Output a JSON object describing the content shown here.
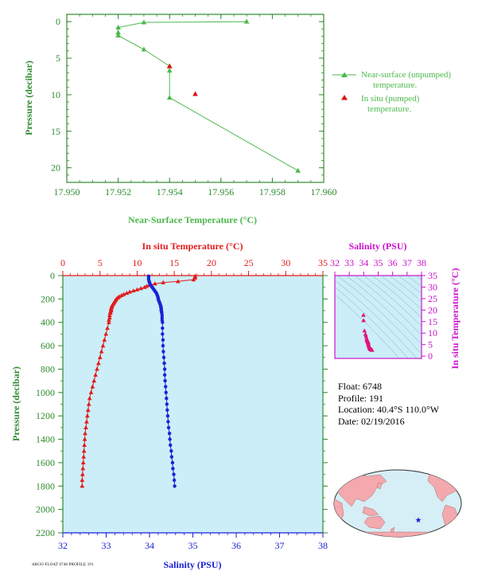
{
  "chart_data": [
    {
      "type": "line",
      "panel": "near-surface",
      "xlabel": "Near-Surface Temperature (°C)",
      "ylabel": "Pressure (decibar)",
      "xlim": [
        17.95,
        17.96
      ],
      "ylim": [
        22,
        -1
      ],
      "x_ticks": [
        "17.950",
        "17.952",
        "17.954",
        "17.956",
        "17.958",
        "17.960"
      ],
      "y_ticks": [
        "0",
        "5",
        "10",
        "15",
        "20"
      ],
      "series": [
        {
          "name": "Near-surface (unpumped) temperature.",
          "marker": "triangle",
          "color": "#4cb84c",
          "x": [
            17.957,
            17.953,
            17.952,
            17.952,
            17.952,
            17.953,
            17.954,
            17.954,
            17.954,
            17.959
          ],
          "y": [
            0.0,
            0.1,
            0.8,
            1.5,
            1.9,
            3.8,
            6.1,
            6.7,
            10.4,
            20.4
          ]
        },
        {
          "name": "In situ (pumped) temperature.",
          "marker": "triangle",
          "color": "#dd1111",
          "x": [
            17.954,
            17.955
          ],
          "y": [
            6.1,
            9.9
          ]
        }
      ],
      "legend": [
        {
          "line1": "Near-surface (unpumped)",
          "line2": "temperature."
        },
        {
          "line1": "In situ (pumped)",
          "line2": "temperature."
        }
      ]
    },
    {
      "type": "line",
      "panel": "profile",
      "ylabel": "Pressure (decibar)",
      "top_xlabel": "In situ Temperature (°C)",
      "bottom_xlabel": "Salinity (PSU)",
      "temperature_lim": [
        0,
        35
      ],
      "salinity_lim": [
        32,
        38
      ],
      "ylim": [
        2200,
        0
      ],
      "temperature_ticks": [
        "0",
        "5",
        "10",
        "15",
        "20",
        "25",
        "30",
        "35"
      ],
      "salinity_ticks": [
        "32",
        "33",
        "34",
        "35",
        "36",
        "37",
        "38"
      ],
      "pressure_ticks": [
        "0",
        "200",
        "400",
        "600",
        "800",
        "1000",
        "1200",
        "1400",
        "1600",
        "1800",
        "2000",
        "2200"
      ],
      "series": [
        {
          "name": "In situ Temperature",
          "color": "#e41a1a",
          "marker": "triangle",
          "pressure": [
            5,
            20,
            35,
            50,
            60,
            70,
            80,
            90,
            100,
            110,
            120,
            130,
            140,
            150,
            160,
            170,
            180,
            190,
            200,
            210,
            220,
            230,
            240,
            250,
            260,
            270,
            280,
            290,
            300,
            310,
            320,
            340,
            360,
            380,
            400,
            450,
            500,
            550,
            600,
            650,
            700,
            750,
            800,
            850,
            900,
            950,
            1000,
            1050,
            1100,
            1150,
            1200,
            1250,
            1300,
            1350,
            1400,
            1450,
            1500,
            1550,
            1600,
            1650,
            1700,
            1750,
            1800
          ],
          "values": [
            17.8,
            17.8,
            17.6,
            15.5,
            13.5,
            12.4,
            11.7,
            11.3,
            11.0,
            10.5,
            10.0,
            9.5,
            9.0,
            8.6,
            8.2,
            7.9,
            7.6,
            7.4,
            7.2,
            7.1,
            7.0,
            6.9,
            6.8,
            6.7,
            6.6,
            6.6,
            6.5,
            6.5,
            6.5,
            6.4,
            6.4,
            6.3,
            6.3,
            6.2,
            6.2,
            6.0,
            5.8,
            5.6,
            5.4,
            5.2,
            5.0,
            4.8,
            4.6,
            4.4,
            4.2,
            4.0,
            3.8,
            3.6,
            3.5,
            3.4,
            3.3,
            3.2,
            3.1,
            3.0,
            2.95,
            2.9,
            2.85,
            2.8,
            2.75,
            2.7,
            2.65,
            2.6,
            2.6
          ]
        },
        {
          "name": "Salinity",
          "color": "#1a22d6",
          "marker": "circle",
          "pressure": [
            5,
            20,
            35,
            50,
            60,
            70,
            80,
            90,
            100,
            110,
            120,
            130,
            140,
            150,
            160,
            170,
            180,
            190,
            200,
            210,
            220,
            230,
            240,
            250,
            260,
            270,
            280,
            290,
            300,
            310,
            320,
            340,
            360,
            380,
            400,
            450,
            500,
            550,
            600,
            650,
            700,
            750,
            800,
            850,
            900,
            950,
            1000,
            1050,
            1100,
            1150,
            1200,
            1250,
            1300,
            1350,
            1400,
            1450,
            1500,
            1550,
            1600,
            1650,
            1700,
            1750,
            1800
          ],
          "values": [
            33.98,
            33.98,
            33.98,
            33.99,
            34.0,
            34.01,
            34.02,
            34.04,
            34.06,
            34.08,
            34.1,
            34.12,
            34.14,
            34.16,
            34.17,
            34.18,
            34.19,
            34.2,
            34.2,
            34.21,
            34.22,
            34.23,
            34.24,
            34.25,
            34.26,
            34.26,
            34.27,
            34.27,
            34.27,
            34.28,
            34.28,
            34.29,
            34.29,
            34.29,
            34.3,
            34.3,
            34.3,
            34.31,
            34.31,
            34.32,
            34.33,
            34.34,
            34.35,
            34.35,
            34.36,
            34.37,
            34.38,
            34.39,
            34.4,
            34.41,
            34.42,
            34.43,
            34.44,
            34.46,
            34.47,
            34.48,
            34.5,
            34.51,
            34.53,
            34.54,
            34.56,
            34.57,
            34.58
          ]
        }
      ]
    },
    {
      "type": "scatter",
      "panel": "ts-diagram",
      "xlabel": "Salinity (PSU)",
      "ylabel": "In situ Temperature (°C)",
      "xlim": [
        32,
        38
      ],
      "ylim": [
        -1,
        35
      ],
      "x_ticks": [
        "32",
        "33",
        "34",
        "35",
        "36",
        "37",
        "38"
      ],
      "y_ticks": [
        "0",
        "5",
        "10",
        "15",
        "20",
        "25",
        "30",
        "35"
      ],
      "color": "#e0147c",
      "x": [
        33.98,
        33.99,
        34.05,
        34.12,
        34.16,
        34.2,
        34.22,
        34.24,
        34.26,
        34.27,
        34.28,
        34.29,
        34.3,
        34.3,
        34.31,
        34.32,
        34.34,
        34.36,
        34.38,
        34.4,
        34.42,
        34.44,
        34.47,
        34.5,
        34.53,
        34.56,
        34.58
      ],
      "y": [
        17.8,
        15.5,
        11.0,
        9.5,
        8.6,
        7.6,
        7.0,
        6.8,
        6.6,
        6.5,
        6.4,
        6.3,
        6.2,
        6.0,
        5.6,
        5.2,
        4.8,
        4.4,
        4.0,
        3.6,
        3.4,
        3.2,
        3.0,
        2.9,
        2.8,
        2.7,
        2.6
      ]
    }
  ],
  "info": {
    "float": "Float:  6748",
    "profile": "Profile:  191",
    "location": "Location:  40.4°S  110.0°W",
    "date": "Date:  02/19/2016"
  },
  "footer_text": "ARGO FLOAT 6748 PROFILE 191",
  "colors": {
    "axis_green": "#2e8b2e",
    "near_surface_green": "#4cb84c",
    "temperature_red": "#e41a1a",
    "salinity_blue": "#1a22d6",
    "ts_magenta": "#cc11cc",
    "profile_background": "#cbeef8",
    "map_ocean": "#d6eef6",
    "map_land": "#f3a9ad",
    "float_marker": "#1a22d6"
  },
  "map": {
    "marker_icon": "star-icon"
  }
}
